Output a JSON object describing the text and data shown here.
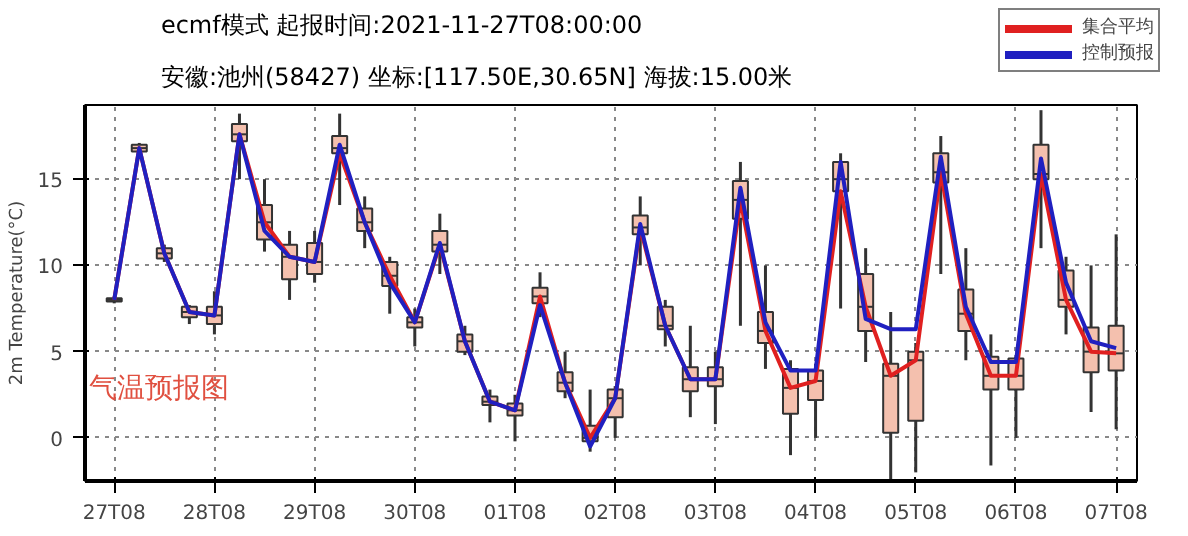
{
  "chart_data": {
    "type": "box",
    "title": "ecmf模式    起报时间:2021-11-27T08:00:00",
    "subtitle": "安徽:池州(58427) 坐标:[117.50E,30.65N] 海拔:15.00米",
    "ylabel": "2m Temperature(°C)",
    "annotations": [
      "气温预报图"
    ],
    "x": [
      "2021-11-27T08:00",
      "2021-11-27T14:00",
      "2021-11-27T20:00",
      "2021-11-28T02:00",
      "2021-11-28T08:00",
      "2021-11-28T14:00",
      "2021-11-28T20:00",
      "2021-11-29T02:00",
      "2021-11-29T08:00",
      "2021-11-29T14:00",
      "2021-11-29T20:00",
      "2021-11-30T02:00",
      "2021-11-30T08:00",
      "2021-11-30T14:00",
      "2021-11-30T20:00",
      "2021-12-01T02:00",
      "2021-12-01T08:00",
      "2021-12-01T14:00",
      "2021-12-01T20:00",
      "2021-12-02T02:00",
      "2021-12-02T08:00",
      "2021-12-02T14:00",
      "2021-12-02T20:00",
      "2021-12-03T02:00",
      "2021-12-03T08:00",
      "2021-12-03T14:00",
      "2021-12-03T20:00",
      "2021-12-04T02:00",
      "2021-12-04T08:00",
      "2021-12-04T14:00",
      "2021-12-04T20:00",
      "2021-12-05T02:00",
      "2021-12-05T08:00",
      "2021-12-05T14:00",
      "2021-12-05T20:00",
      "2021-12-06T02:00",
      "2021-12-06T08:00",
      "2021-12-06T14:00",
      "2021-12-06T20:00",
      "2021-12-07T02:00",
      "2021-12-07T08:00"
    ],
    "color": "#f4c0ae",
    "boxes": [
      {
        "low": 7.8,
        "q1": 7.9,
        "median": 8.0,
        "q3": 8.1,
        "high": 8.2
      },
      {
        "low": 16.4,
        "q1": 16.6,
        "median": 16.8,
        "q3": 17.0,
        "high": 17.1
      },
      {
        "low": 10.2,
        "q1": 10.4,
        "median": 10.7,
        "q3": 11.0,
        "high": 11.2
      },
      {
        "low": 6.6,
        "q1": 7.0,
        "median": 7.3,
        "q3": 7.6,
        "high": 7.7
      },
      {
        "low": 6.0,
        "q1": 6.6,
        "median": 7.1,
        "q3": 7.6,
        "high": 8.5
      },
      {
        "low": 15.0,
        "q1": 17.2,
        "median": 17.6,
        "q3": 18.2,
        "high": 18.8
      },
      {
        "low": 10.8,
        "q1": 11.5,
        "median": 12.5,
        "q3": 13.5,
        "high": 15.0
      },
      {
        "low": 8.0,
        "q1": 9.2,
        "median": 10.5,
        "q3": 11.2,
        "high": 12.0
      },
      {
        "low": 9.0,
        "q1": 9.5,
        "median": 10.2,
        "q3": 11.3,
        "high": 12.0
      },
      {
        "low": 13.5,
        "q1": 16.5,
        "median": 16.8,
        "q3": 17.5,
        "high": 18.8
      },
      {
        "low": 11.0,
        "q1": 12.0,
        "median": 12.5,
        "q3": 13.3,
        "high": 14.0
      },
      {
        "low": 7.2,
        "q1": 8.8,
        "median": 9.4,
        "q3": 10.2,
        "high": 10.5
      },
      {
        "low": 5.3,
        "q1": 6.4,
        "median": 6.7,
        "q3": 7.0,
        "high": 7.5
      },
      {
        "low": 9.5,
        "q1": 10.8,
        "median": 11.2,
        "q3": 12.0,
        "high": 13.0
      },
      {
        "low": 4.8,
        "q1": 5.0,
        "median": 5.6,
        "q3": 6.0,
        "high": 6.5
      },
      {
        "low": 0.9,
        "q1": 1.9,
        "median": 2.1,
        "q3": 2.4,
        "high": 2.8
      },
      {
        "low": -0.2,
        "q1": 1.3,
        "median": 1.6,
        "q3": 2.0,
        "high": 2.5
      },
      {
        "low": 7.0,
        "q1": 7.8,
        "median": 8.2,
        "q3": 8.7,
        "high": 9.6
      },
      {
        "low": 2.3,
        "q1": 2.7,
        "median": 3.2,
        "q3": 3.8,
        "high": 5.0
      },
      {
        "low": -0.8,
        "q1": -0.2,
        "median": 0.0,
        "q3": 0.7,
        "high": 2.8
      },
      {
        "low": 0.0,
        "q1": 1.2,
        "median": 2.3,
        "q3": 2.8,
        "high": 3.0
      },
      {
        "low": 10.0,
        "q1": 11.8,
        "median": 12.2,
        "q3": 12.9,
        "high": 14.0
      },
      {
        "low": 5.3,
        "q1": 6.3,
        "median": 6.5,
        "q3": 7.6,
        "high": 8.0
      },
      {
        "low": 1.2,
        "q1": 2.7,
        "median": 3.4,
        "q3": 4.1,
        "high": 6.5
      },
      {
        "low": 0.8,
        "q1": 3.0,
        "median": 3.4,
        "q3": 4.1,
        "high": 5.0
      },
      {
        "low": 6.5,
        "q1": 12.7,
        "median": 13.8,
        "q3": 14.9,
        "high": 16.0
      },
      {
        "low": 4.0,
        "q1": 5.5,
        "median": 6.2,
        "q3": 7.3,
        "high": 10.0
      },
      {
        "low": -1.0,
        "q1": 1.4,
        "median": 2.9,
        "q3": 4.0,
        "high": 4.5
      },
      {
        "low": 0.0,
        "q1": 2.2,
        "median": 3.3,
        "q3": 3.9,
        "high": 4.3
      },
      {
        "low": 7.5,
        "q1": 14.3,
        "median": 15.0,
        "q3": 16.0,
        "high": 16.5
      },
      {
        "low": 4.4,
        "q1": 6.2,
        "median": 7.6,
        "q3": 9.5,
        "high": 11.0
      },
      {
        "low": -2.4,
        "q1": 0.3,
        "median": 3.6,
        "q3": 4.3,
        "high": 7.3
      },
      {
        "low": -2.0,
        "q1": 1.0,
        "median": 4.5,
        "q3": 5.0,
        "high": 5.5
      },
      {
        "low": 9.5,
        "q1": 14.8,
        "median": 15.4,
        "q3": 16.5,
        "high": 17.5
      },
      {
        "low": 4.5,
        "q1": 6.2,
        "median": 7.2,
        "q3": 8.6,
        "high": 11.0
      },
      {
        "low": -1.6,
        "q1": 2.8,
        "median": 3.6,
        "q3": 4.7,
        "high": 6.0
      },
      {
        "low": 0.0,
        "q1": 2.8,
        "median": 3.6,
        "q3": 4.6,
        "high": 4.8
      },
      {
        "low": 11.0,
        "q1": 15.0,
        "median": 15.3,
        "q3": 17.0,
        "high": 19.0
      },
      {
        "low": 6.0,
        "q1": 7.6,
        "median": 8.0,
        "q3": 9.7,
        "high": 10.5
      },
      {
        "low": 1.5,
        "q1": 3.8,
        "median": 5.0,
        "q3": 6.4,
        "high": 10.0
      },
      {
        "low": 0.5,
        "q1": 3.9,
        "median": 4.9,
        "q3": 6.5,
        "high": 11.8
      }
    ],
    "series": [
      {
        "name": "集合平均",
        "type": "line",
        "color": "#e02020",
        "values": [
          8.0,
          16.8,
          10.7,
          7.3,
          7.1,
          17.6,
          12.5,
          10.5,
          10.2,
          16.5,
          12.5,
          9.4,
          6.7,
          11.2,
          5.6,
          2.1,
          1.6,
          8.2,
          3.2,
          0.0,
          2.3,
          12.2,
          6.5,
          3.4,
          3.4,
          13.8,
          6.2,
          2.9,
          3.3,
          14.3,
          7.6,
          3.6,
          4.5,
          15.4,
          7.2,
          3.6,
          3.6,
          15.3,
          8.0,
          5.0,
          4.9
        ]
      },
      {
        "name": "控制预报",
        "type": "line",
        "color": "#2020c0",
        "values": [
          8.0,
          16.8,
          10.7,
          7.3,
          7.1,
          17.6,
          12.0,
          10.5,
          10.2,
          17.0,
          12.5,
          9.0,
          6.7,
          11.3,
          5.6,
          2.1,
          1.6,
          7.7,
          3.2,
          -0.5,
          2.3,
          12.4,
          6.5,
          3.4,
          3.4,
          14.5,
          6.7,
          3.9,
          3.9,
          16.0,
          6.9,
          6.3,
          6.3,
          16.3,
          7.6,
          4.4,
          4.4,
          16.2,
          9.0,
          5.6,
          5.2
        ]
      }
    ],
    "xlim": [
      "2021-11-27T01:00",
      "2021-12-07T13:00"
    ],
    "ylim": [
      -2.5,
      19.3
    ],
    "xticks": [
      {
        "value": "2021-11-27T08:00",
        "label": "27T08"
      },
      {
        "value": "2021-11-28T08:00",
        "label": "28T08"
      },
      {
        "value": "2021-11-29T08:00",
        "label": "29T08"
      },
      {
        "value": "2021-11-30T08:00",
        "label": "30T08"
      },
      {
        "value": "2021-12-01T08:00",
        "label": "01T08"
      },
      {
        "value": "2021-12-02T08:00",
        "label": "02T08"
      },
      {
        "value": "2021-12-03T08:00",
        "label": "03T08"
      },
      {
        "value": "2021-12-04T08:00",
        "label": "04T08"
      },
      {
        "value": "2021-12-05T08:00",
        "label": "05T08"
      },
      {
        "value": "2021-12-06T08:00",
        "label": "06T08"
      },
      {
        "value": "2021-12-07T08:00",
        "label": "07T08"
      }
    ],
    "yticks": [
      0,
      5,
      10,
      15
    ],
    "grid": true,
    "legend": "top right"
  }
}
